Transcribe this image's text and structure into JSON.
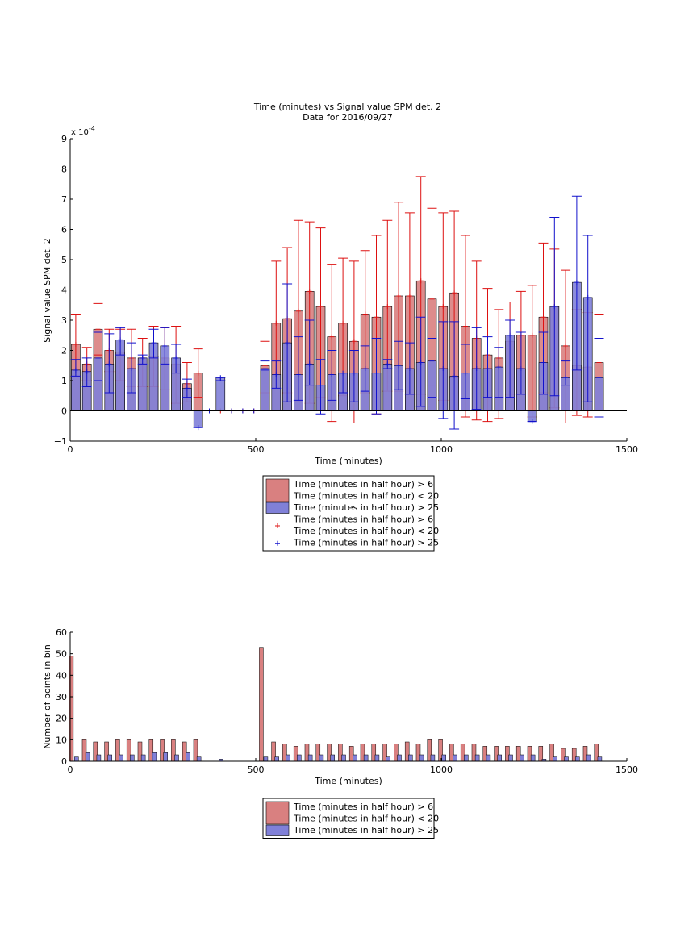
{
  "title_lines": [
    "Time (minutes) vs Signal value SPM det. 2",
    "Data for 2016/09/27"
  ],
  "colors": {
    "red_fill": "#d98080",
    "blue_fill": "#8080d8",
    "red_line": "#dd1111",
    "blue_line": "#1111cc",
    "axis": "#000000"
  },
  "chart_data": [
    {
      "type": "bar",
      "xlabel": "Time (minutes)",
      "ylabel": "Signal value SPM det. 2",
      "y_multiplier": "x 10",
      "y_exponent": "-4",
      "xlim": [
        0,
        1500
      ],
      "ylim": [
        -1,
        9
      ],
      "xticks": [
        "0",
        "500",
        "1000",
        "1500"
      ],
      "yticks": [
        "−1",
        "0",
        "1",
        "2",
        "3",
        "4",
        "5",
        "6",
        "7",
        "8",
        "9"
      ],
      "y_scale": "1e-4",
      "legend": [
        {
          "label": "Time (minutes in half hour) > 6 Time (minutes in half hour) < 20",
          "lines": [
            "Time (minutes in half hour) > 6",
            "Time (minutes in half hour) < 20"
          ],
          "kind": "bar",
          "color": "red"
        },
        {
          "label": "Time (minutes in half hour) > 25",
          "lines": [
            "Time (minutes in half hour) > 25"
          ],
          "kind": "bar",
          "color": "blue"
        },
        {
          "label": "Time (minutes in half hour) > 6 Time (minutes in half hour) < 20",
          "lines": [
            "Time (minutes in half hour) > 6",
            "Time (minutes in half hour) < 20"
          ],
          "kind": "plus",
          "color": "red"
        },
        {
          "label": "Time (minutes in half hour) > 25",
          "lines": [
            "Time (minutes in half hour) > 25"
          ],
          "kind": "plus",
          "color": "blue"
        }
      ],
      "series": [
        {
          "label_ref": 0,
          "x": [
            15,
            45,
            75,
            105,
            135,
            165,
            195,
            225,
            255,
            285,
            315,
            345,
            375,
            405,
            435,
            465,
            495,
            525,
            555,
            585,
            615,
            645,
            675,
            705,
            735,
            765,
            795,
            825,
            855,
            885,
            915,
            945,
            975,
            1005,
            1035,
            1065,
            1095,
            1125,
            1155,
            1185,
            1215,
            1245,
            1275,
            1305,
            1335,
            1365,
            1395,
            1425
          ],
          "values": [
            2.2,
            1.55,
            2.7,
            2.0,
            1.95,
            1.75,
            1.75,
            1.8,
            1.75,
            1.55,
            0.9,
            1.25,
            0,
            0,
            0,
            0,
            0,
            1.5,
            2.9,
            3.05,
            3.3,
            3.95,
            3.45,
            2.45,
            2.9,
            2.3,
            3.2,
            3.1,
            3.45,
            3.8,
            3.8,
            4.3,
            3.7,
            3.45,
            3.9,
            2.8,
            2.4,
            1.85,
            1.75,
            2.3,
            2.5,
            2.5,
            3.1,
            3.45,
            2.15,
            1.5,
            1.45,
            1.6
          ],
          "err_low": [
            1.15,
            1.0,
            1.85,
            1.3,
            1.0,
            0.8,
            0.8,
            0.8,
            0.7,
            0.25,
            0.3,
            0.45,
            0,
            0,
            0,
            0,
            0,
            0.6,
            0.85,
            0.6,
            0.3,
            0.25,
            0.45,
            -0.35,
            0.5,
            -0.4,
            0.6,
            -0.1,
            0.65,
            0.65,
            0.55,
            0.55,
            0.85,
            0.35,
            1.1,
            -0.2,
            -0.3,
            -0.35,
            -0.25,
            0.55,
            0.55,
            -0.2,
            0.6,
            0.1,
            -0.4,
            -0.15,
            -0.2,
            -0.2
          ],
          "err_high": [
            3.2,
            2.1,
            3.55,
            2.7,
            2.7,
            2.7,
            2.4,
            2.8,
            2.75,
            2.8,
            1.6,
            2.05,
            0,
            0,
            0,
            0,
            0,
            2.3,
            4.95,
            5.4,
            6.3,
            6.25,
            6.05,
            4.85,
            5.05,
            4.95,
            5.3,
            5.8,
            6.3,
            6.9,
            6.55,
            7.75,
            6.7,
            6.55,
            6.6,
            5.8,
            4.95,
            4.05,
            3.35,
            3.6,
            3.95,
            4.15,
            5.55,
            5.35,
            4.65,
            3.35,
            3.25,
            3.2
          ],
          "x_raw": "bin centers"
        },
        {
          "label_ref": 1,
          "x": [
            15,
            45,
            75,
            105,
            135,
            165,
            195,
            225,
            255,
            285,
            315,
            345,
            375,
            405,
            435,
            465,
            495,
            525,
            555,
            585,
            615,
            645,
            675,
            705,
            735,
            765,
            795,
            825,
            855,
            885,
            915,
            945,
            975,
            1005,
            1035,
            1065,
            1095,
            1125,
            1155,
            1185,
            1215,
            1245,
            1275,
            1305,
            1335,
            1365,
            1395,
            1425
          ],
          "values": [
            1.35,
            1.3,
            1.75,
            1.55,
            2.35,
            1.4,
            1.75,
            2.25,
            2.15,
            1.75,
            0.75,
            -0.55,
            0,
            1.1,
            0,
            0,
            0,
            1.4,
            1.2,
            2.25,
            1.2,
            1.55,
            0.85,
            1.2,
            1.25,
            1.25,
            1.4,
            1.25,
            1.55,
            1.5,
            1.4,
            1.6,
            1.65,
            1.4,
            1.15,
            1.25,
            1.4,
            1.4,
            1.45,
            2.5,
            1.4,
            -0.35,
            1.6,
            3.45,
            1.1,
            4.25,
            3.75,
            1.1
          ],
          "err_low": [
            1.15,
            0.8,
            1.0,
            0.6,
            1.85,
            0.6,
            1.55,
            1.75,
            1.55,
            1.25,
            0.45,
            -0.55,
            0,
            1.0,
            0,
            0,
            0,
            1.35,
            0.75,
            0.3,
            0.35,
            0.85,
            -0.1,
            0.35,
            0.6,
            0.3,
            0.65,
            -0.1,
            1.4,
            0.7,
            0.55,
            0.15,
            0.45,
            -0.25,
            -0.6,
            0.4,
            0.05,
            0.45,
            0.45,
            0.45,
            0.55,
            -0.35,
            0.55,
            0.5,
            0.85,
            1.35,
            0.3,
            -0.2
          ],
          "err_high": [
            1.7,
            1.75,
            2.6,
            2.55,
            2.75,
            2.25,
            1.85,
            2.7,
            2.75,
            2.2,
            1.05,
            -0.55,
            0,
            1.1,
            0,
            0,
            0,
            1.65,
            1.65,
            4.2,
            2.45,
            3.0,
            1.7,
            2.0,
            1.25,
            2.0,
            2.15,
            2.4,
            1.7,
            2.3,
            2.25,
            3.1,
            2.4,
            2.95,
            2.95,
            2.2,
            2.75,
            2.45,
            2.1,
            3.0,
            2.6,
            -0.35,
            2.6,
            6.4,
            1.65,
            7.1,
            5.8,
            2.4
          ],
          "x_raw": "bin centers"
        }
      ]
    },
    {
      "type": "bar",
      "xlabel": "Time (minutes)",
      "ylabel": "Number of points in bin",
      "xlim": [
        0,
        1500
      ],
      "ylim": [
        0,
        60
      ],
      "xticks": [
        "0",
        "500",
        "1000",
        "1500"
      ],
      "yticks": [
        "0",
        "10",
        "20",
        "30",
        "40",
        "50",
        "60"
      ],
      "legend": [
        {
          "label": "Time (minutes in half hour) > 6 Time (minutes in half hour) < 20",
          "lines": [
            "Time (minutes in half hour) > 6",
            "Time (minutes in half hour) < 20"
          ],
          "kind": "bar",
          "color": "red"
        },
        {
          "label": "Time (minutes in half hour) > 25",
          "lines": [
            "Time (minutes in half hour) > 25"
          ],
          "kind": "bar",
          "color": "blue"
        }
      ],
      "series": [
        {
          "label_ref": 0,
          "x": [
            3,
            38,
            68,
            98,
            128,
            158,
            188,
            218,
            248,
            278,
            308,
            338,
            368,
            398,
            428,
            458,
            488,
            515,
            548,
            578,
            608,
            638,
            668,
            698,
            728,
            758,
            788,
            818,
            848,
            878,
            908,
            938,
            968,
            998,
            1028,
            1058,
            1088,
            1118,
            1148,
            1178,
            1208,
            1238,
            1268,
            1298,
            1328,
            1358,
            1388,
            1418
          ],
          "values": [
            49,
            10,
            9,
            9,
            10,
            10,
            9,
            10,
            10,
            10,
            9,
            10,
            0,
            0,
            0,
            0,
            0,
            53,
            9,
            8,
            7,
            8,
            8,
            8,
            8,
            7,
            8,
            8,
            8,
            8,
            9,
            8,
            10,
            10,
            8,
            8,
            8,
            7,
            7,
            7,
            7,
            7,
            7,
            8,
            6,
            6,
            7,
            8
          ]
        },
        {
          "label_ref": 1,
          "x": [
            17,
            47,
            77,
            107,
            137,
            167,
            197,
            227,
            257,
            287,
            317,
            347,
            377,
            407,
            437,
            467,
            497,
            527,
            557,
            587,
            617,
            647,
            677,
            707,
            737,
            767,
            797,
            827,
            857,
            887,
            917,
            947,
            977,
            1007,
            1037,
            1067,
            1097,
            1127,
            1157,
            1187,
            1217,
            1247,
            1277,
            1307,
            1337,
            1367,
            1397,
            1427
          ],
          "values": [
            2,
            4,
            3,
            3,
            3,
            3,
            3,
            4,
            4,
            3,
            4,
            2,
            0,
            1,
            0,
            0,
            0,
            2,
            2,
            3,
            3,
            3,
            3,
            3,
            3,
            3,
            3,
            3,
            2,
            3,
            3,
            3,
            3,
            3,
            3,
            3,
            3,
            3,
            3,
            3,
            3,
            3,
            1,
            2,
            2,
            2,
            3,
            2
          ]
        }
      ]
    }
  ]
}
